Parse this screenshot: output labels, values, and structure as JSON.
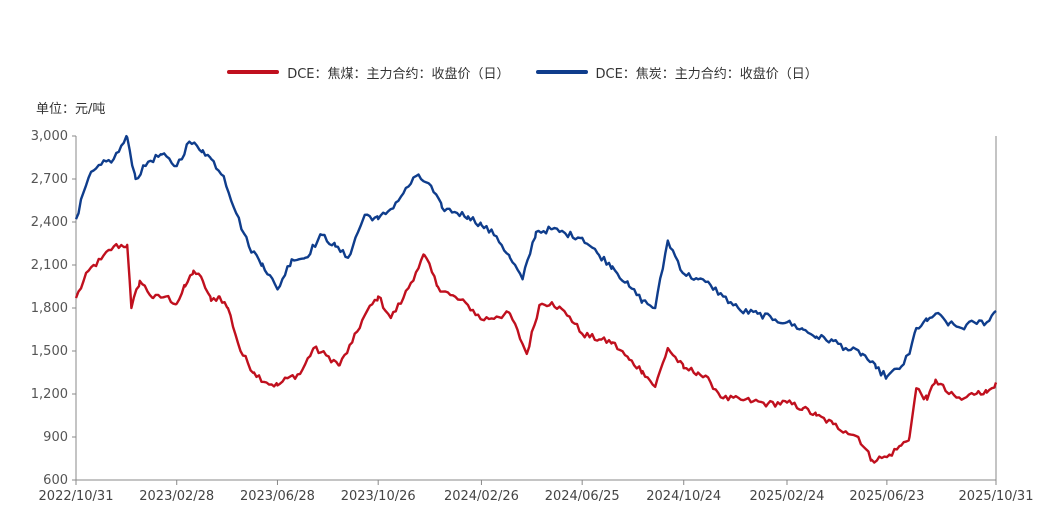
{
  "chart_data": {
    "type": "line",
    "unit_label": "单位：元/吨",
    "ylim": [
      600,
      3000
    ],
    "yticks": [
      600,
      900,
      1200,
      1500,
      1800,
      2100,
      2400,
      2700,
      3000
    ],
    "ytick_labels": [
      "600",
      "900",
      "1,200",
      "1,500",
      "1,800",
      "2,100",
      "2,400",
      "2,700",
      "3,000"
    ],
    "x_range": [
      "2022/10/31",
      "2025/10/31"
    ],
    "xticks": [
      "2022/10/31",
      "2023/02/28",
      "2023/06/28",
      "2023/10/26",
      "2024/02/26",
      "2024/06/25",
      "2024/10/24",
      "2025/02/24",
      "2025/06/23",
      "2025/10/31"
    ],
    "legend_position": "top-center",
    "series": [
      {
        "name": "DCE：焦煤：主力合约：收盘价（日）",
        "color": "#c0101e",
        "points": [
          [
            "2022/10/31",
            1870
          ],
          [
            "2022/11/15",
            2060
          ],
          [
            "2022/11/30",
            2140
          ],
          [
            "2022/12/15",
            2230
          ],
          [
            "2022/12/31",
            2240
          ],
          [
            "2023/01/05",
            1800
          ],
          [
            "2023/01/15",
            1990
          ],
          [
            "2023/01/31",
            1870
          ],
          [
            "2023/02/15",
            1880
          ],
          [
            "2023/02/28",
            1830
          ],
          [
            "2023/03/10",
            1950
          ],
          [
            "2023/03/20",
            2060
          ],
          [
            "2023/03/31",
            1990
          ],
          [
            "2023/04/10",
            1850
          ],
          [
            "2023/04/20",
            1880
          ],
          [
            "2023/04/30",
            1800
          ],
          [
            "2023/05/15",
            1500
          ],
          [
            "2023/05/31",
            1350
          ],
          [
            "2023/06/15",
            1280
          ],
          [
            "2023/06/28",
            1260
          ],
          [
            "2023/07/10",
            1310
          ],
          [
            "2023/07/25",
            1340
          ],
          [
            "2023/08/10",
            1520
          ],
          [
            "2023/08/25",
            1470
          ],
          [
            "2023/09/10",
            1400
          ],
          [
            "2023/09/25",
            1560
          ],
          [
            "2023/10/10",
            1750
          ],
          [
            "2023/10/26",
            1880
          ],
          [
            "2023/11/10",
            1730
          ],
          [
            "2023/11/25",
            1870
          ],
          [
            "2023/12/10",
            2050
          ],
          [
            "2023/12/20",
            2170
          ],
          [
            "2024/01/05",
            1950
          ],
          [
            "2024/01/20",
            1890
          ],
          [
            "2024/02/10",
            1820
          ],
          [
            "2024/02/26",
            1720
          ],
          [
            "2024/03/15",
            1740
          ],
          [
            "2024/03/31",
            1760
          ],
          [
            "2024/04/20",
            1480
          ],
          [
            "2024/05/05",
            1820
          ],
          [
            "2024/05/20",
            1840
          ],
          [
            "2024/06/10",
            1740
          ],
          [
            "2024/06/25",
            1620
          ],
          [
            "2024/07/15",
            1580
          ],
          [
            "2024/07/31",
            1560
          ],
          [
            "2024/08/20",
            1440
          ],
          [
            "2024/09/05",
            1360
          ],
          [
            "2024/09/20",
            1250
          ],
          [
            "2024/10/05",
            1520
          ],
          [
            "2024/10/24",
            1380
          ],
          [
            "2024/11/10",
            1350
          ],
          [
            "2024/11/25",
            1280
          ],
          [
            "2024/12/10",
            1170
          ],
          [
            "2024/12/31",
            1160
          ],
          [
            "2025/01/15",
            1150
          ],
          [
            "2025/02/01",
            1130
          ],
          [
            "2025/02/24",
            1140
          ],
          [
            "2025/03/15",
            1100
          ],
          [
            "2025/03/31",
            1050
          ],
          [
            "2025/04/20",
            990
          ],
          [
            "2025/05/05",
            940
          ],
          [
            "2025/05/20",
            900
          ],
          [
            "2025/06/05",
            740
          ],
          [
            "2025/06/23",
            760
          ],
          [
            "2025/07/10",
            840
          ],
          [
            "2025/07/20",
            900
          ],
          [
            "2025/07/28",
            1240
          ],
          [
            "2025/08/10",
            1160
          ],
          [
            "2025/08/20",
            1300
          ],
          [
            "2025/09/05",
            1200
          ],
          [
            "2025/09/20",
            1160
          ],
          [
            "2025/10/10",
            1220
          ],
          [
            "2025/10/20",
            1210
          ],
          [
            "2025/10/31",
            1280
          ]
        ]
      },
      {
        "name": "DCE：焦炭：主力合约：收盘价（日）",
        "color": "#0f3d8c",
        "points": [
          [
            "2022/10/31",
            2420
          ],
          [
            "2022/11/15",
            2710
          ],
          [
            "2022/11/30",
            2800
          ],
          [
            "2022/12/15",
            2840
          ],
          [
            "2022/12/31",
            2990
          ],
          [
            "2023/01/10",
            2700
          ],
          [
            "2023/01/25",
            2820
          ],
          [
            "2023/02/10",
            2870
          ],
          [
            "2023/02/28",
            2790
          ],
          [
            "2023/03/15",
            2960
          ],
          [
            "2023/03/31",
            2900
          ],
          [
            "2023/04/10",
            2840
          ],
          [
            "2023/04/25",
            2720
          ],
          [
            "2023/05/10",
            2460
          ],
          [
            "2023/05/25",
            2230
          ],
          [
            "2023/06/10",
            2110
          ],
          [
            "2023/06/28",
            1930
          ],
          [
            "2023/07/15",
            2140
          ],
          [
            "2023/07/31",
            2150
          ],
          [
            "2023/08/20",
            2310
          ],
          [
            "2023/09/05",
            2230
          ],
          [
            "2023/09/20",
            2150
          ],
          [
            "2023/10/10",
            2450
          ],
          [
            "2023/10/26",
            2420
          ],
          [
            "2023/11/10",
            2490
          ],
          [
            "2023/11/25",
            2600
          ],
          [
            "2023/12/10",
            2720
          ],
          [
            "2023/12/25",
            2670
          ],
          [
            "2024/01/10",
            2500
          ],
          [
            "2024/01/25",
            2470
          ],
          [
            "2024/02/10",
            2440
          ],
          [
            "2024/02/26",
            2380
          ],
          [
            "2024/03/15",
            2300
          ],
          [
            "2024/03/31",
            2150
          ],
          [
            "2024/04/15",
            2000
          ],
          [
            "2024/05/01",
            2330
          ],
          [
            "2024/05/20",
            2350
          ],
          [
            "2024/06/05",
            2320
          ],
          [
            "2024/06/25",
            2290
          ],
          [
            "2024/07/15",
            2170
          ],
          [
            "2024/07/31",
            2090
          ],
          [
            "2024/08/20",
            1950
          ],
          [
            "2024/09/05",
            1850
          ],
          [
            "2024/09/20",
            1800
          ],
          [
            "2024/10/05",
            2270
          ],
          [
            "2024/10/24",
            2040
          ],
          [
            "2024/11/10",
            2000
          ],
          [
            "2024/11/25",
            1960
          ],
          [
            "2024/12/10",
            1880
          ],
          [
            "2024/12/31",
            1780
          ],
          [
            "2025/01/20",
            1760
          ],
          [
            "2025/02/10",
            1720
          ],
          [
            "2025/02/24",
            1700
          ],
          [
            "2025/03/15",
            1650
          ],
          [
            "2025/03/31",
            1600
          ],
          [
            "2025/04/20",
            1570
          ],
          [
            "2025/05/05",
            1520
          ],
          [
            "2025/05/25",
            1480
          ],
          [
            "2025/06/10",
            1380
          ],
          [
            "2025/06/23",
            1320
          ],
          [
            "2025/07/10",
            1390
          ],
          [
            "2025/07/20",
            1480
          ],
          [
            "2025/07/28",
            1660
          ],
          [
            "2025/08/10",
            1710
          ],
          [
            "2025/08/20",
            1760
          ],
          [
            "2025/09/05",
            1690
          ],
          [
            "2025/09/20",
            1660
          ],
          [
            "2025/10/05",
            1700
          ],
          [
            "2025/10/20",
            1700
          ],
          [
            "2025/10/31",
            1780
          ]
        ]
      }
    ]
  }
}
